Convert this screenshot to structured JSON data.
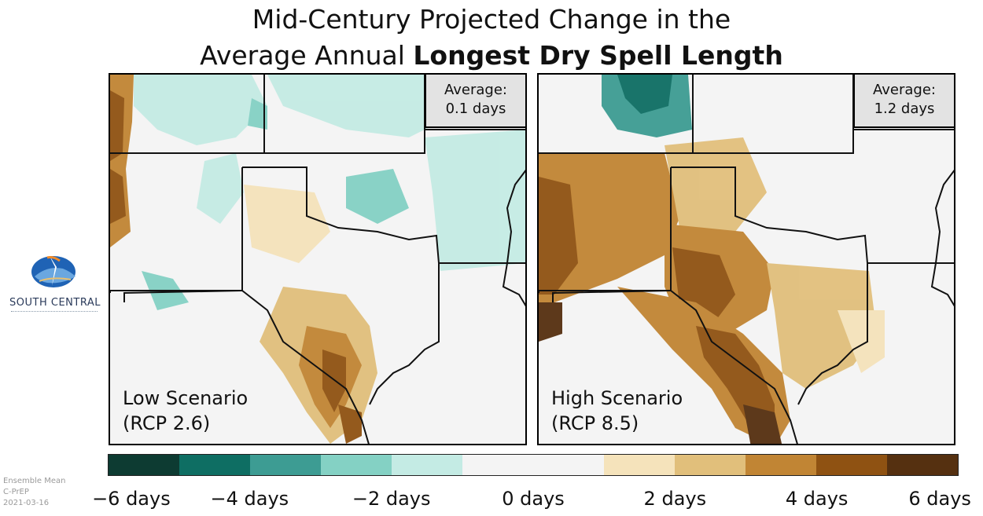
{
  "title": {
    "line1": "Mid-Century Projected Change in the",
    "line2_prefix": "Average Annual ",
    "line2_bold": "Longest Dry Spell Length"
  },
  "panels": [
    {
      "id": "low",
      "average_label": "Average:",
      "average_value": "0.1 days",
      "scenario_line1": "Low Scenario",
      "scenario_line2": "(RCP 2.6)"
    },
    {
      "id": "high",
      "average_label": "Average:",
      "average_value": "1.2 days",
      "scenario_line1": "High Scenario",
      "scenario_line2": "(RCP 8.5)"
    }
  ],
  "logo": {
    "text": "SOUTH CENTRAL",
    "icon": "climate-center-logo-icon"
  },
  "meta": {
    "line1": "Ensemble Mean",
    "line2": "C-PrEP",
    "line3": "2021-03-16"
  },
  "colorbar": {
    "colors": [
      "#0d3b32",
      "#0e6e63",
      "#3d9c93",
      "#84d1c4",
      "#c4ebe4",
      "#f4f4f4",
      "#f4f4f4",
      "#f5e3bb",
      "#e1bf7b",
      "#c18534",
      "#8f5212",
      "#553010"
    ],
    "min": -6,
    "max": 6,
    "ticks": [
      {
        "value": -6,
        "label": "−6 days"
      },
      {
        "value": -4,
        "label": "−4 days"
      },
      {
        "value": -2,
        "label": "−2 days"
      },
      {
        "value": 0,
        "label": "0 days"
      },
      {
        "value": 2,
        "label": "2 days"
      },
      {
        "value": 4,
        "label": "4 days"
      },
      {
        "value": 6,
        "label": "6 days"
      }
    ]
  }
}
